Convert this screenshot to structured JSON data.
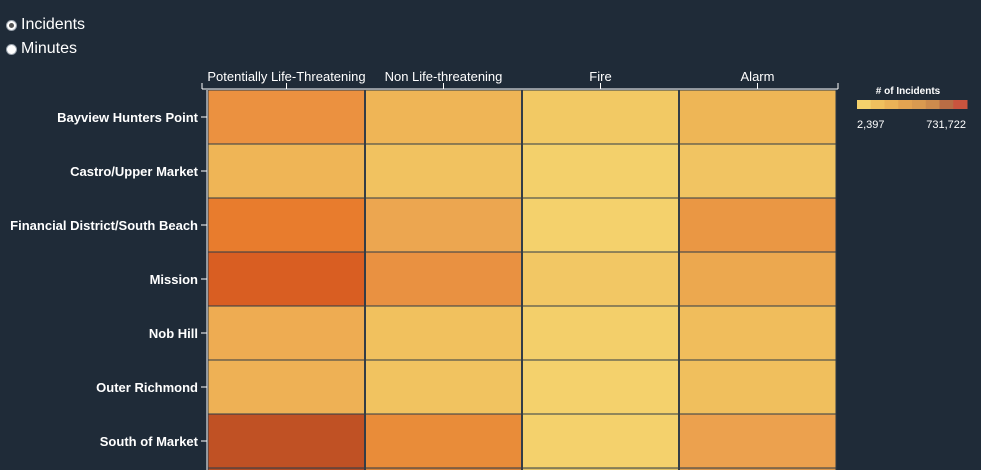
{
  "controls": {
    "options": [
      {
        "label": "Incidents",
        "checked": true
      },
      {
        "label": "Minutes",
        "checked": false
      }
    ]
  },
  "legend": {
    "title": "# of Incidents",
    "min_label": "2,397",
    "max_label": "731,722",
    "colors": [
      "#f4d16c",
      "#f0c05e",
      "#ebb257",
      "#e3a351",
      "#d99a50",
      "#cc8b4d",
      "#b86d45",
      "#c9543e"
    ]
  },
  "chart_data": {
    "type": "heatmap",
    "columns": [
      "Potentially Life-Threatening",
      "Non Life-threatening",
      "Fire",
      "Alarm"
    ],
    "rows": [
      "Bayview Hunters Point",
      "Castro/Upper Market",
      "Financial District/South Beach",
      "Mission",
      "Nob Hill",
      "Outer Richmond",
      "South of Market"
    ],
    "colors": [
      [
        "#eb9140",
        "#efb556",
        "#f2c964",
        "#eeb656"
      ],
      [
        "#efb556",
        "#f1c260",
        "#f3d06b",
        "#f1c462"
      ],
      [
        "#e87c2d",
        "#eca650",
        "#f4d16c",
        "#ea9744"
      ],
      [
        "#d95e22",
        "#e99141",
        "#f2c764",
        "#eca84f"
      ],
      [
        "#eeac52",
        "#f1c15e",
        "#f3cf6a",
        "#f0bd5c"
      ],
      [
        "#eeb155",
        "#f1c360",
        "#f4d16c",
        "#f0bf5d"
      ],
      [
        "#c05124",
        "#e98c39",
        "#f4d16c",
        "#eca14e"
      ]
    ]
  }
}
